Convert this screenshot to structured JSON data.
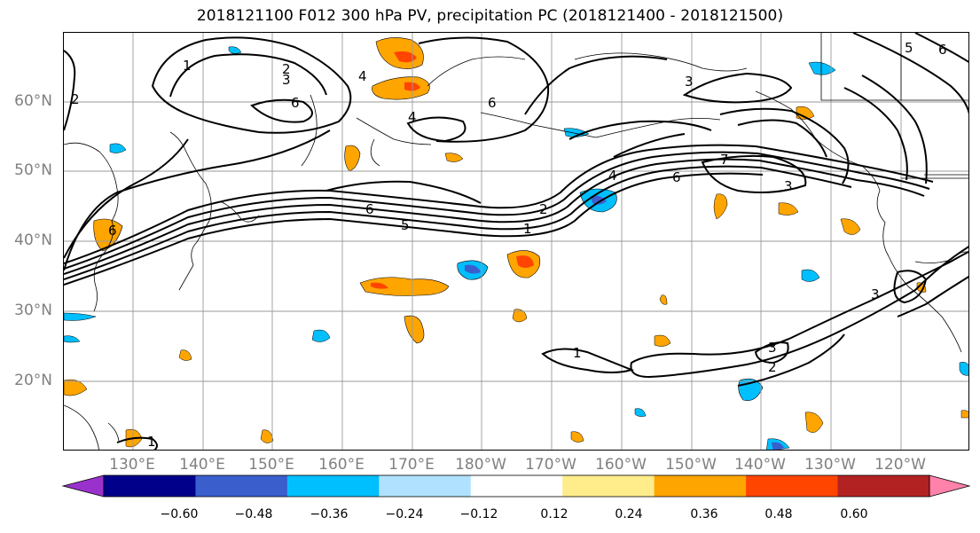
{
  "title": "2018121100 F012 300 hPa PV, precipitation PC (2018121400 - 2018121500)",
  "map": {
    "projection": "equirectangular",
    "lon_range": [
      "120°E",
      "115°W"
    ],
    "lat_range": [
      "10°N",
      "70°N"
    ],
    "lat_labels": [
      "60°N",
      "50°N",
      "40°N",
      "30°N",
      "20°N"
    ],
    "lon_labels": [
      "130°E",
      "140°E",
      "150°E",
      "160°E",
      "170°E",
      "180°W",
      "170°W",
      "160°W",
      "150°W",
      "140°W",
      "130°W",
      "120°W"
    ],
    "contour_field": "300 hPa PV",
    "contour_labels": [
      "1",
      "2",
      "3",
      "4",
      "6",
      "4",
      "6",
      "6",
      "3",
      "7",
      "6",
      "4",
      "3",
      "2",
      "1",
      "6",
      "5",
      "2",
      "1",
      "3",
      "2",
      "1",
      "6",
      "5"
    ],
    "shaded_field": "precipitation PC"
  },
  "colorbar": {
    "colors": [
      "#9932CC",
      "#00008B",
      "#3A5FCD",
      "#00BFFF",
      "#B0E2FF",
      "#FFFFFF",
      "#FFEC8B",
      "#FFA500",
      "#FF4500",
      "#B22222",
      "#FF82AB"
    ],
    "ticks": [
      "−0.60",
      "−0.48",
      "−0.36",
      "−0.24",
      "−0.12",
      "0.12",
      "0.24",
      "0.36",
      "0.48",
      "0.60"
    ],
    "extend": "both"
  }
}
